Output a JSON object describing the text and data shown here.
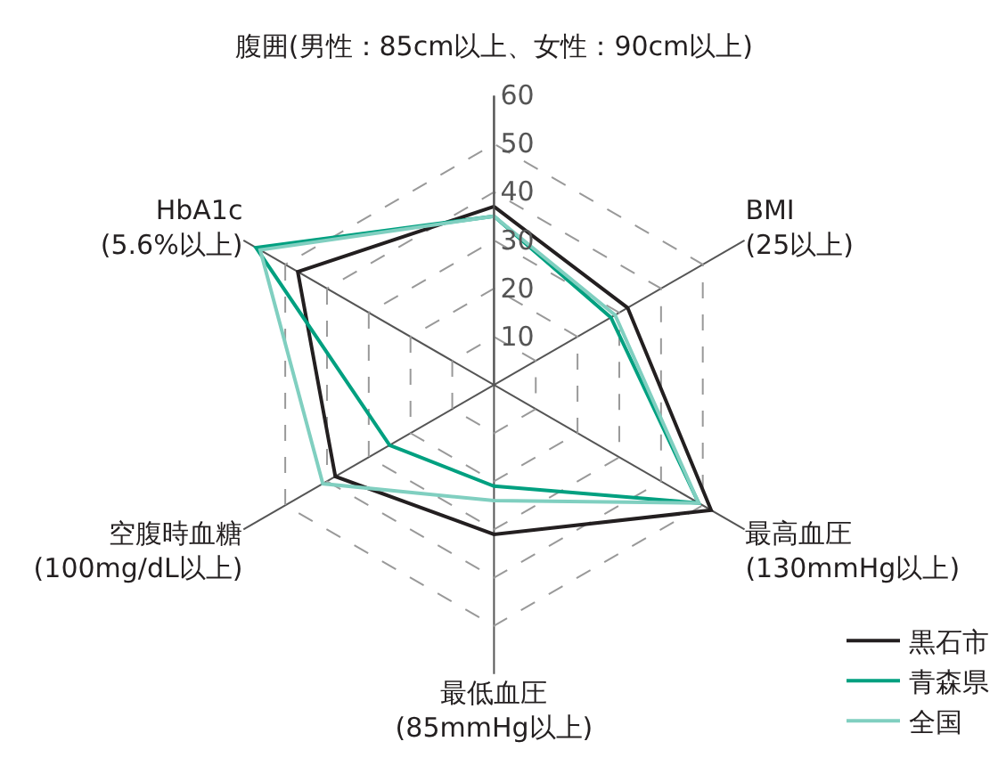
{
  "chart_data": {
    "type": "radar",
    "categories": [
      "腹囲(男性：85cm以上、女性：90cm以上)",
      "BMI\n(25以上)",
      "最高血圧\n(130mmHg以上)",
      "最低血圧\n(85mmHg以上)",
      "空腹時血糖\n(100mg/dL以上)",
      "HbA1c\n(5.6%以上)"
    ],
    "series": [
      {
        "name": "黒石市",
        "color": "#231f20",
        "values": [
          37,
          32,
          52,
          31,
          38,
          47
        ]
      },
      {
        "name": "青森県",
        "color": "#00a080",
        "values": [
          35,
          28,
          49,
          21,
          25,
          57
        ]
      },
      {
        "name": "全国",
        "color": "#80cfc0",
        "values": [
          35,
          29,
          49,
          24,
          41,
          56
        ]
      }
    ],
    "ylim": [
      0,
      60
    ],
    "yticks": [
      10,
      20,
      30,
      40,
      50,
      60
    ],
    "grid": true,
    "legend": "bottom right",
    "marker": "none",
    "line_style": "solid"
  }
}
